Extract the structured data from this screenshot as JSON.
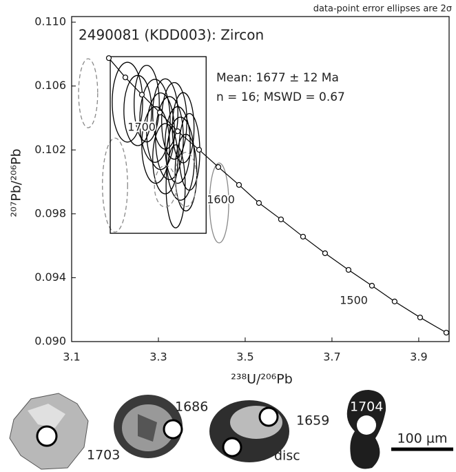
{
  "chart_data": {
    "type": "ellipse",
    "title": "2490081 (KDD003): Zircon",
    "note": "data-point error ellipses are 2σ",
    "mean_text": "Mean: 1677 ± 12 Ma",
    "stats_text": "n = 16; MSWD = 0.67",
    "x_label": "²³⁸U/²⁰⁶Pb",
    "y_label": "²⁰⁷Pb/²⁰⁶Pb",
    "xlim": [
      3.1,
      3.97
    ],
    "ylim": [
      0.09,
      0.11035
    ],
    "xticks": [
      3.1,
      3.3,
      3.5,
      3.7,
      3.9
    ],
    "yticks": [
      {
        "value": 0.09,
        "label": "0.090"
      },
      0.094,
      0.098,
      0.102,
      0.106,
      {
        "value": 0.11,
        "label": "0.110"
      }
    ],
    "concordia": {
      "color": "#000000",
      "x": [
        3.1857,
        3.2238,
        3.2619,
        3.3032,
        3.3444,
        3.3937,
        3.4381,
        3.4857,
        3.5317,
        3.5825,
        3.6333,
        3.6841,
        3.7381,
        3.7921,
        3.8444,
        3.9032,
        3.9635
      ],
      "y": [
        0.10775,
        0.10654,
        0.10546,
        0.10434,
        0.10317,
        0.10201,
        0.10093,
        0.09981,
        0.09868,
        0.09765,
        0.09657,
        0.09553,
        0.09449,
        0.0935,
        0.09251,
        0.09151,
        0.09056
      ],
      "ages": [
        null,
        null,
        null,
        1700,
        null,
        null,
        null,
        1600,
        null,
        null,
        null,
        null,
        null,
        1500,
        null,
        null,
        null
      ]
    },
    "mean_box": {
      "xlim": [
        3.189,
        3.41
      ],
      "ylim": [
        0.09678,
        0.10784
      ]
    },
    "ellipses": [
      {
        "color": "#000000",
        "dashed": false,
        "x": [
          3.2286,
          3.2524,
          3.273,
          3.2921,
          3.3048,
          3.3159,
          3.3254,
          3.3365,
          3.3444,
          3.3508,
          3.3571,
          3.3635,
          3.3714,
          3.3159,
          3.2937,
          3.3397
        ],
        "y": [
          0.10499,
          0.10447,
          0.1049,
          0.10382,
          0.10317,
          0.10425,
          0.10274,
          0.10382,
          0.10231,
          0.10145,
          0.10339,
          0.10058,
          0.10188,
          0.10145,
          0.10231,
          0.09972
        ],
        "x_err": [
          0.035,
          0.032,
          0.029,
          0.035,
          0.032,
          0.029,
          0.032,
          0.029,
          0.029,
          0.032,
          0.025,
          0.025,
          0.024,
          0.029,
          0.032,
          0.022
        ],
        "y_err": [
          0.0025,
          0.0022,
          0.0024,
          0.0026,
          0.0024,
          0.0022,
          0.0026,
          0.0024,
          0.0024,
          0.0026,
          0.0022,
          0.0024,
          0.0024,
          0.0022,
          0.0024,
          0.0026
        ]
      },
      {
        "color": "#888888",
        "dashed": true,
        "x": [
          3.138,
          3.2,
          3.3159,
          3.3635
        ],
        "y": [
          0.10555,
          0.0998,
          0.09972,
          0.10015
        ],
        "x_err": [
          0.022,
          0.029,
          0.025,
          0.025
        ],
        "y_err": [
          0.00216,
          0.00294,
          0.0013,
          0.0017
        ]
      },
      {
        "color": "#888888",
        "dashed": false,
        "x": [
          3.44
        ],
        "y": [
          0.09868
        ],
        "x_err": [
          0.022
        ],
        "y_err": [
          0.0025
        ]
      }
    ]
  },
  "grains": {
    "labels": [
      "1703",
      "1686",
      "1659",
      "disc",
      "1704"
    ],
    "scale_bar": "100 µm"
  }
}
